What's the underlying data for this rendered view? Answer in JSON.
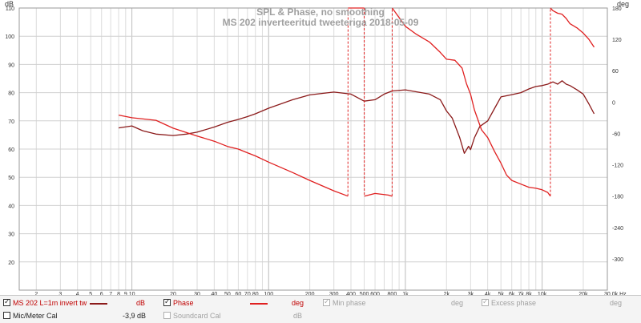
{
  "chart_data": {
    "type": "line",
    "title": "SPL & Phase, no smoothing",
    "subtitle": "MS 202 inverteeritud tweeteriga 2018-05-09",
    "xscale": "log",
    "xlim": [
      1.5,
      30000
    ],
    "ylim": [
      10,
      110
    ],
    "y2lim": [
      -360,
      180
    ],
    "ylabel": "dB",
    "y2label": "deg",
    "xlabel": "",
    "x_tick_labels": [
      {
        "v": 2,
        "t": "2"
      },
      {
        "v": 3,
        "t": "3"
      },
      {
        "v": 4,
        "t": "4"
      },
      {
        "v": 5,
        "t": "5"
      },
      {
        "v": 6,
        "t": "6"
      },
      {
        "v": 7,
        "t": "7"
      },
      {
        "v": 8,
        "t": "8"
      },
      {
        "v": 9,
        "t": "9"
      },
      {
        "v": 10,
        "t": "10"
      },
      {
        "v": 20,
        "t": "20"
      },
      {
        "v": 30,
        "t": "30"
      },
      {
        "v": 40,
        "t": "40"
      },
      {
        "v": 50,
        "t": "50"
      },
      {
        "v": 60,
        "t": "60"
      },
      {
        "v": 70,
        "t": "70"
      },
      {
        "v": 80,
        "t": "80"
      },
      {
        "v": 100,
        "t": "100"
      },
      {
        "v": 200,
        "t": "200"
      },
      {
        "v": 300,
        "t": "300"
      },
      {
        "v": 400,
        "t": "400"
      },
      {
        "v": 500,
        "t": "500"
      },
      {
        "v": 600,
        "t": "600"
      },
      {
        "v": 800,
        "t": "800"
      },
      {
        "v": 1000,
        "t": "1k"
      },
      {
        "v": 2000,
        "t": "2k"
      },
      {
        "v": 3000,
        "t": "3k"
      },
      {
        "v": 4000,
        "t": "4k"
      },
      {
        "v": 5000,
        "t": "5k"
      },
      {
        "v": 6000,
        "t": "6k"
      },
      {
        "v": 7000,
        "t": "7k"
      },
      {
        "v": 8000,
        "t": "8k"
      },
      {
        "v": 10000,
        "t": "10k"
      },
      {
        "v": 20000,
        "t": "20k"
      },
      {
        "v": 30000,
        "t": "30.0k Hz"
      }
    ],
    "y_tick_labels": [
      "20",
      "30",
      "40",
      "50",
      "60",
      "70",
      "80",
      "90",
      "100",
      "110"
    ],
    "y2_tick_labels": [
      "-300",
      "-240",
      "-180",
      "-120",
      "-60",
      "0",
      "60",
      "120",
      "180"
    ],
    "grid": true,
    "series": [
      {
        "name": "MS 202 L=1m invert tw",
        "color": "#8b1a1a",
        "axis": "left",
        "unit": "dB",
        "x": [
          8,
          10,
          12,
          15,
          20,
          25,
          30,
          40,
          50,
          60,
          70,
          80,
          100,
          150,
          200,
          300,
          400,
          500,
          600,
          700,
          800,
          1000,
          1200,
          1500,
          1800,
          2000,
          2200,
          2500,
          2700,
          2900,
          3000,
          3200,
          3500,
          4000,
          4500,
          5000,
          6000,
          7000,
          8000,
          9000,
          10000,
          11000,
          12000,
          13000,
          14000,
          15000,
          16000,
          18000,
          20000,
          22000,
          24000
        ],
        "y": [
          67.5,
          68.2,
          66.5,
          65.3,
          64.8,
          65.3,
          66,
          67.8,
          69.5,
          70.5,
          71.5,
          72.5,
          74.5,
          77.5,
          79.2,
          80.2,
          79.5,
          77,
          77.5,
          79.5,
          80.6,
          81,
          80.3,
          79.5,
          77.5,
          73.5,
          71,
          64,
          58.5,
          61,
          59.8,
          64,
          68,
          70,
          74.5,
          78.5,
          79.3,
          80,
          81.3,
          82.2,
          82.5,
          83,
          83.8,
          83,
          84.2,
          83,
          82.5,
          81,
          79.5,
          76,
          72.5
        ]
      },
      {
        "name": "Phase",
        "color": "#e02020",
        "axis": "right",
        "unit": "deg",
        "x": [
          8,
          10,
          15,
          20,
          30,
          40,
          50,
          60,
          70,
          80,
          100,
          150,
          200,
          300,
          380,
          381,
          450,
          500,
          501,
          600,
          750,
          800,
          801,
          1000,
          1200,
          1500,
          1800,
          2000,
          2300,
          2600,
          2800,
          3000,
          3200,
          3600,
          4000,
          4500,
          5000,
          5500,
          6000,
          7000,
          8000,
          9000,
          10000,
          11000,
          11500,
          11501,
          12000,
          13000,
          14000,
          15000,
          16000,
          18000,
          20000,
          22000,
          24000
        ],
        "y": [
          -25,
          -30,
          -35,
          -50,
          -65,
          -75,
          -85,
          -90,
          -97,
          -103,
          -115,
          -135,
          -150,
          -170,
          -180,
          180,
          180,
          180,
          -180,
          -175,
          -178,
          -180,
          180,
          145,
          130,
          115,
          95,
          82,
          80,
          65,
          35,
          15,
          -15,
          -53,
          -68,
          -95,
          -117,
          -140,
          -150,
          -157,
          -163,
          -165,
          -168,
          -173,
          -180,
          180,
          175,
          170,
          168,
          160,
          150,
          142,
          132,
          120,
          105
        ]
      }
    ]
  },
  "legend": {
    "series1_label": "MS 202 L=1m invert tw",
    "series1_unit": "dB",
    "phase_label": "Phase",
    "phase_unit": "deg",
    "min_phase_label": "Min phase",
    "min_phase_unit": "deg",
    "excess_phase_label": "Excess phase",
    "excess_phase_unit": "deg",
    "mic_cal_label": "Mic/Meter Cal",
    "mic_cal_value": "-3,9 dB",
    "soundcard_cal_label": "Soundcard Cal",
    "soundcard_cal_unit": "dB",
    "check_mark": "✓"
  }
}
